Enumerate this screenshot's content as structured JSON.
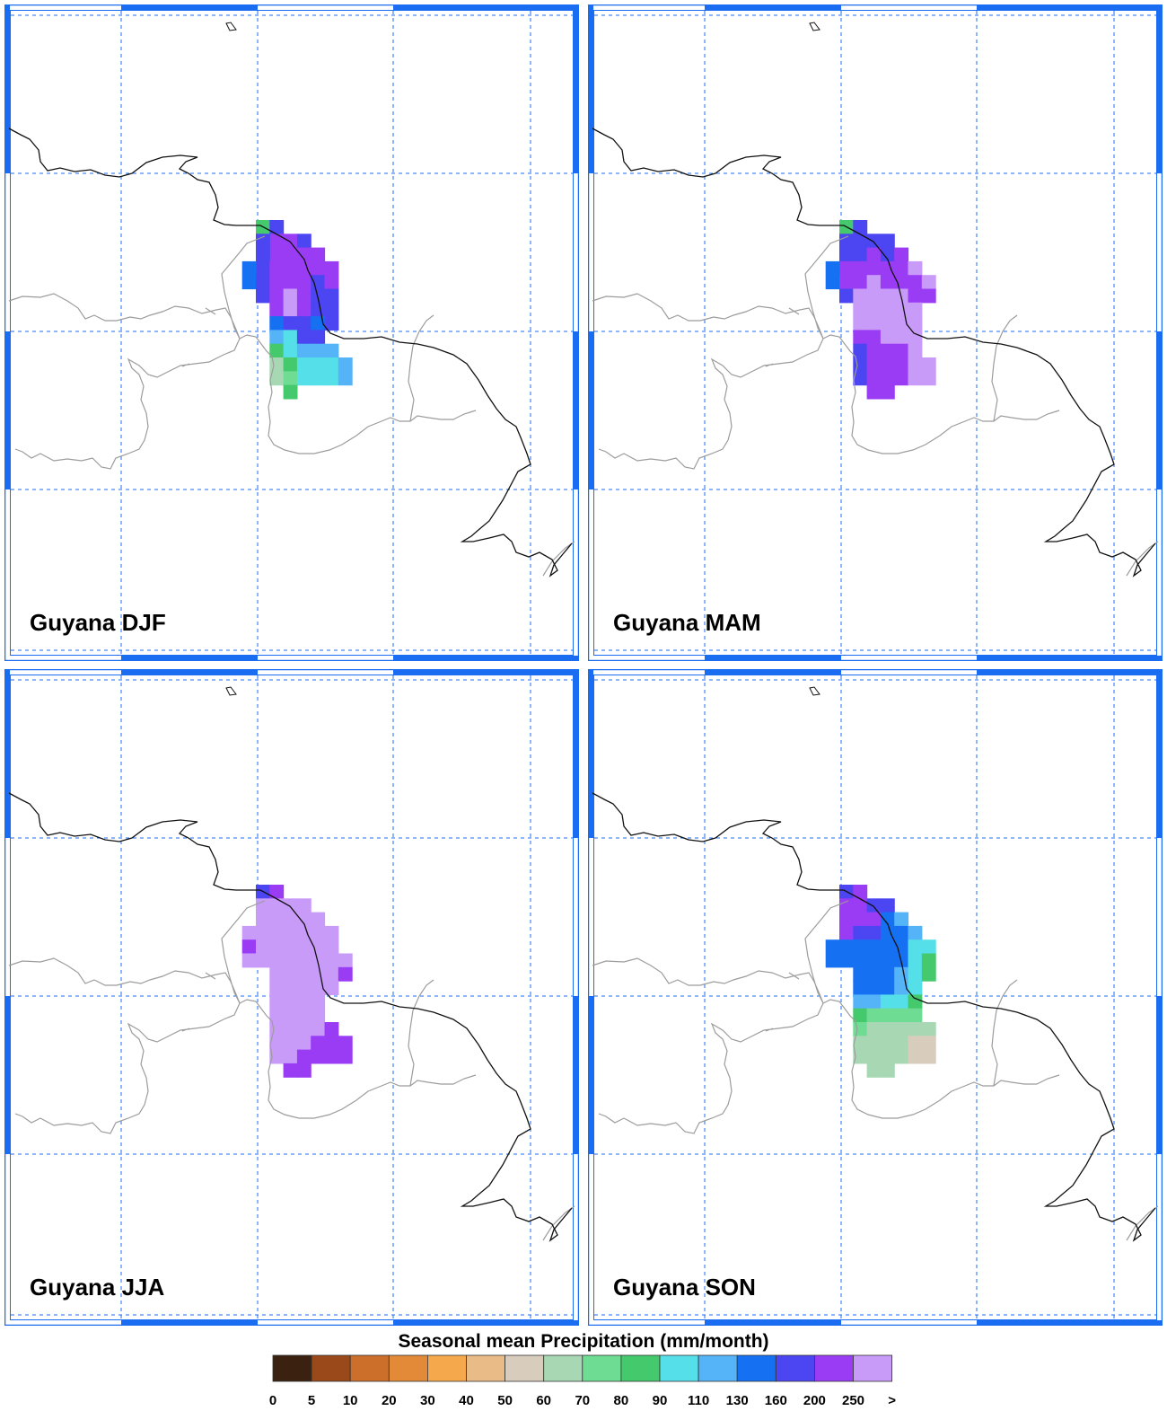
{
  "panels": [
    {
      "title": "Guyana DJF",
      "season": "DJF",
      "cells": [
        "7,0,80",
        "8,0,160",
        "8,1,200",
        "9,1,200",
        "10,1,160",
        "8,2,200",
        "9,2,200",
        "10,2,200",
        "11,2,200",
        "7,1,160",
        "7,2,160",
        "7,3,160",
        "8,3,200",
        "9,3,200",
        "10,3,200",
        "11,3,200",
        "12,3,200",
        "6,3,130",
        "6,4,130",
        "7,4,160",
        "8,4,200",
        "9,4,200",
        "10,4,200",
        "11,4,160",
        "12,4,200",
        "7,5,160",
        "8,5,200",
        "9,5,250",
        "10,5,200",
        "11,5,160",
        "12,5,160",
        "8,6,200",
        "9,6,250",
        "10,6,200",
        "11,6,160",
        "12,6,160",
        "8,7,130",
        "9,7,160",
        "10,7,160",
        "11,7,130",
        "12,7,160",
        "8,8,110",
        "9,8,90",
        "10,8,160",
        "11,8,160",
        "8,9,80",
        "9,9,90",
        "10,9,110",
        "11,9,110",
        "12,9,110",
        "8,10,60",
        "9,10,80",
        "10,10,90",
        "11,10,90",
        "12,10,90",
        "13,10,110",
        "8,11,60",
        "9,11,70",
        "10,11,90",
        "11,11,90",
        "12,11,90",
        "13,11,110",
        "9,12,80"
      ]
    },
    {
      "title": "Guyana MAM",
      "season": "MAM",
      "cells": [
        "7,0,80",
        "8,0,160",
        "8,1,160",
        "9,1,160",
        "10,1,160",
        "8,2,160",
        "9,2,200",
        "10,2,160",
        "11,2,200",
        "7,1,160",
        "7,2,160",
        "7,3,200",
        "8,3,200",
        "9,3,200",
        "10,3,200",
        "11,3,200",
        "12,3,250",
        "6,3,130",
        "6,4,130",
        "7,4,200",
        "8,4,200",
        "9,4,250",
        "10,4,200",
        "11,4,200",
        "12,4,200",
        "13,4,250",
        "7,5,160",
        "8,5,250",
        "9,5,250",
        "10,5,250",
        "11,5,250",
        "12,5,200",
        "13,5,200",
        "8,6,250",
        "9,6,250",
        "10,6,250",
        "11,6,250",
        "12,6,250",
        "8,7,250",
        "9,7,250",
        "10,7,250",
        "11,7,250",
        "12,7,250",
        "8,8,200",
        "9,8,200",
        "10,8,250",
        "11,8,250",
        "12,8,250",
        "8,9,160",
        "9,9,200",
        "10,9,200",
        "11,9,200",
        "12,9,250",
        "8,10,160",
        "9,10,200",
        "10,10,200",
        "11,10,200",
        "12,10,250",
        "13,10,250",
        "8,11,160",
        "9,11,200",
        "10,11,200",
        "11,11,200",
        "12,11,250",
        "13,11,250",
        "9,12,200",
        "10,12,200"
      ]
    },
    {
      "title": "Guyana JJA",
      "season": "JJA",
      "cells": [
        "7,0,160",
        "8,0,200",
        "8,1,250",
        "9,1,250",
        "10,1,250",
        "8,2,250",
        "9,2,250",
        "10,2,250",
        "11,2,250",
        "7,1,250",
        "7,2,250",
        "7,3,250",
        "8,3,250",
        "9,3,250",
        "10,3,250",
        "11,3,250",
        "12,3,250",
        "6,3,250",
        "6,4,200",
        "7,4,250",
        "8,4,250",
        "9,4,250",
        "10,4,250",
        "11,4,250",
        "12,4,250",
        "6,5,250",
        "7,5,250",
        "8,5,250",
        "9,5,250",
        "10,5,250",
        "11,5,250",
        "12,5,250",
        "13,5,250",
        "8,6,250",
        "9,6,250",
        "10,6,250",
        "11,6,250",
        "12,6,250",
        "13,6,200",
        "8,7,250",
        "9,7,250",
        "10,7,250",
        "11,7,250",
        "12,7,250",
        "8,8,250",
        "9,8,250",
        "10,8,250",
        "11,8,250",
        "8,9,250",
        "9,9,250",
        "10,9,250",
        "11,9,250",
        "8,10,250",
        "9,10,250",
        "10,10,250",
        "11,10,250",
        "12,10,200",
        "8,11,250",
        "9,11,250",
        "10,11,250",
        "11,11,200",
        "12,11,200",
        "13,11,200",
        "8,12,250",
        "9,12,250",
        "10,12,200",
        "11,12,200",
        "12,12,200",
        "13,12,200",
        "9,13,200",
        "10,13,200"
      ]
    },
    {
      "title": "Guyana SON",
      "season": "SON",
      "cells": [
        "7,0,160",
        "8,0,200",
        "8,1,200",
        "9,1,160",
        "10,1,160",
        "8,2,200",
        "9,2,200",
        "10,2,130",
        "11,2,110",
        "7,1,200",
        "7,2,200",
        "7,3,200",
        "8,3,160",
        "9,3,160",
        "10,3,130",
        "11,3,130",
        "12,3,110",
        "6,4,130",
        "7,4,130",
        "8,4,130",
        "9,4,130",
        "10,4,130",
        "11,4,130",
        "12,4,90",
        "13,4,90",
        "6,5,130",
        "7,5,130",
        "8,5,130",
        "9,5,130",
        "10,5,130",
        "11,5,130",
        "12,5,90",
        "13,5,80",
        "8,6,130",
        "9,6,130",
        "10,6,130",
        "11,6,110",
        "12,6,90",
        "13,6,80",
        "8,7,130",
        "9,7,130",
        "10,7,130",
        "11,7,110",
        "12,7,90",
        "8,8,110",
        "9,8,110",
        "10,8,90",
        "11,8,90",
        "12,8,80",
        "8,9,80",
        "9,9,70",
        "10,9,70",
        "11,9,70",
        "12,9,70",
        "8,10,70",
        "9,10,60",
        "10,10,60",
        "11,10,60",
        "12,10,60",
        "13,10,60",
        "8,11,60",
        "9,11,60",
        "10,11,60",
        "11,11,60",
        "12,11,50",
        "13,11,50",
        "8,12,60",
        "9,12,60",
        "10,12,60",
        "11,12,60",
        "12,12,50",
        "13,12,50",
        "9,13,60",
        "10,13,60"
      ]
    }
  ],
  "legend": {
    "title": "Seasonal mean Precipitation (mm/month)",
    "labels": [
      "0",
      "5",
      "10",
      "20",
      "30",
      "40",
      "50",
      "60",
      "70",
      "80",
      "90",
      "110",
      "130",
      "160",
      "200",
      "250",
      ">"
    ],
    "colors": [
      "#3b2110",
      "#9a4a1a",
      "#cc6f2a",
      "#e38a38",
      "#f6a84c",
      "#e9bb86",
      "#d8ccbc",
      "#a8d8b3",
      "#6edc92",
      "#44c96d",
      "#55dfe8",
      "#55b4f7",
      "#1671f2",
      "#4c45f2",
      "#9b3cf5",
      "#c99bf9"
    ]
  }
}
